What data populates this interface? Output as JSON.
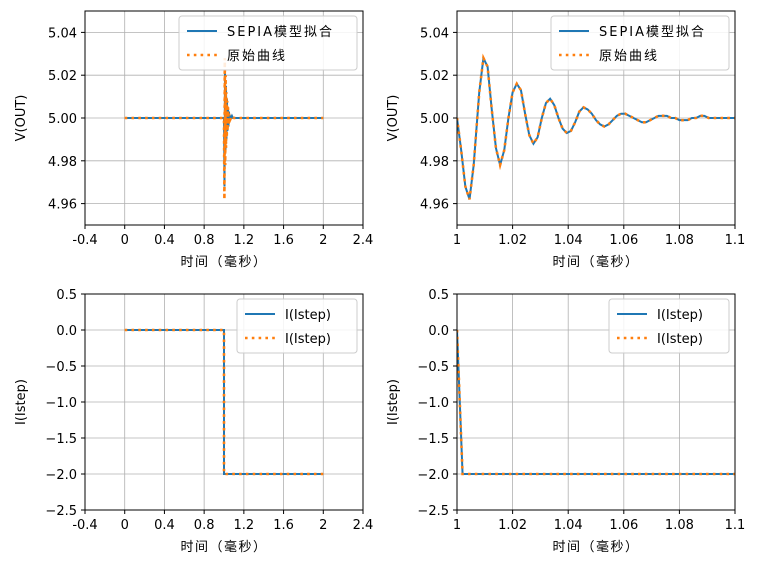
{
  "chart_data": [
    {
      "type": "line",
      "xlabel": "时间（毫秒）",
      "ylabel": "V(OUT)",
      "xlim": [
        -0.4,
        2.4
      ],
      "ylim": [
        4.95,
        5.05
      ],
      "xticks": [
        "-0.4",
        "0",
        "0.4",
        "0.8",
        "1.2",
        "1.6",
        "2",
        "2.4"
      ],
      "yticks": [
        "4.96",
        "4.98",
        "5.00",
        "5.02",
        "5.04"
      ],
      "grid": true,
      "legend_position": "top-right",
      "series": [
        {
          "name": "SEPIA模型拟合",
          "color": "#1f77b4",
          "style": "solid",
          "x": [
            0,
            0.99,
            1.0,
            1.005,
            1.01,
            1.015,
            1.02,
            1.025,
            1.03,
            1.035,
            1.04,
            1.045,
            1.05,
            1.055,
            1.06,
            1.07,
            1.08,
            1.09,
            1.1,
            2.0
          ],
          "y": [
            5.0,
            5.0,
            5.0,
            4.968,
            5.022,
            4.984,
            5.015,
            4.99,
            5.009,
            4.994,
            5.005,
            4.996,
            5.003,
            4.998,
            5.001,
            5.0,
            5.001,
            5.0,
            5.0,
            5.0
          ]
        },
        {
          "name": "原始曲线",
          "color": "#ff7f0e",
          "style": "dotted",
          "x": [
            0,
            0.99,
            1.0,
            1.004,
            1.008,
            1.012,
            1.016,
            1.02,
            1.024,
            1.028,
            1.032,
            1.036,
            1.04,
            1.044,
            1.05,
            1.06,
            1.08,
            1.1,
            2.0
          ],
          "y": [
            5.0,
            5.0,
            5.0,
            4.962,
            5.028,
            4.978,
            5.02,
            4.986,
            5.012,
            4.991,
            5.008,
            4.994,
            5.005,
            4.997,
            5.002,
            4.999,
            5.001,
            5.0,
            5.0
          ]
        }
      ]
    },
    {
      "type": "line",
      "xlabel": "时间（毫秒）",
      "ylabel": "V(OUT)",
      "xlim": [
        1.0,
        1.1
      ],
      "ylim": [
        4.95,
        5.05
      ],
      "xticks": [
        "1",
        "1.02",
        "1.04",
        "1.06",
        "1.08",
        "1.1"
      ],
      "yticks": [
        "4.96",
        "4.98",
        "5.00",
        "5.02",
        "5.04"
      ],
      "grid": true,
      "legend_position": "top-right",
      "series": [
        {
          "name": "SEPIA模型拟合",
          "color": "#1f77b4",
          "style": "solid",
          "x": [
            1.0,
            1.0015,
            1.003,
            1.0045,
            1.006,
            1.008,
            1.0095,
            1.011,
            1.0125,
            1.014,
            1.0155,
            1.017,
            1.0185,
            1.02,
            1.0215,
            1.023,
            1.0245,
            1.026,
            1.0275,
            1.029,
            1.0305,
            1.032,
            1.0335,
            1.035,
            1.0365,
            1.038,
            1.0395,
            1.041,
            1.0425,
            1.044,
            1.0455,
            1.047,
            1.0485,
            1.05,
            1.0515,
            1.053,
            1.0545,
            1.056,
            1.0575,
            1.059,
            1.0605,
            1.062,
            1.0635,
            1.065,
            1.0665,
            1.068,
            1.0695,
            1.071,
            1.0725,
            1.074,
            1.0755,
            1.077,
            1.0785,
            1.08,
            1.0815,
            1.083,
            1.0845,
            1.086,
            1.0875,
            1.089,
            1.0905,
            1.092,
            1.0935,
            1.095,
            1.0965,
            1.098,
            1.0995,
            1.1
          ],
          "y": [
            5.0,
            4.985,
            4.968,
            4.962,
            4.978,
            5.012,
            5.028,
            5.024,
            5.004,
            4.986,
            4.978,
            4.985,
            5.0,
            5.012,
            5.016,
            5.013,
            5.002,
            4.992,
            4.988,
            4.991,
            5.0,
            5.007,
            5.009,
            5.006,
            5.0,
            4.995,
            4.993,
            4.994,
            4.998,
            5.003,
            5.005,
            5.004,
            5.002,
            4.999,
            4.997,
            4.996,
            4.997,
            4.999,
            5.001,
            5.002,
            5.002,
            5.001,
            5.0,
            4.999,
            4.998,
            4.998,
            4.999,
            5.0,
            5.001,
            5.001,
            5.001,
            5.0,
            5.0,
            4.999,
            4.999,
            4.999,
            5.0,
            5.0,
            5.001,
            5.001,
            5.0,
            5.0,
            5.0,
            5.0,
            5.0,
            5.0,
            5.0,
            5.0
          ]
        },
        {
          "name": "原始曲线",
          "color": "#ff7f0e",
          "style": "dotted",
          "x": [
            1.0,
            1.0015,
            1.003,
            1.0045,
            1.006,
            1.008,
            1.0095,
            1.011,
            1.0125,
            1.014,
            1.0155,
            1.017,
            1.0185,
            1.02,
            1.0215,
            1.023,
            1.0245,
            1.026,
            1.0275,
            1.029,
            1.0305,
            1.032,
            1.0335,
            1.035,
            1.0365,
            1.038,
            1.0395,
            1.041,
            1.0425,
            1.044,
            1.0455,
            1.047,
            1.0485,
            1.05,
            1.0515,
            1.053,
            1.0545,
            1.056,
            1.0575,
            1.059,
            1.0605,
            1.062,
            1.0635,
            1.065,
            1.0665,
            1.068,
            1.0695,
            1.071,
            1.0725,
            1.074,
            1.0755,
            1.077,
            1.0785,
            1.08,
            1.0815,
            1.083,
            1.0845,
            1.086,
            1.0875,
            1.089,
            1.0905,
            1.092,
            1.0935,
            1.095,
            1.0965,
            1.098,
            1.0995,
            1.1
          ],
          "y": [
            5.0,
            4.985,
            4.968,
            4.962,
            4.978,
            5.012,
            5.028,
            5.024,
            5.004,
            4.986,
            4.978,
            4.985,
            5.0,
            5.012,
            5.016,
            5.013,
            5.002,
            4.992,
            4.988,
            4.991,
            5.0,
            5.007,
            5.009,
            5.006,
            5.0,
            4.995,
            4.993,
            4.994,
            4.998,
            5.003,
            5.005,
            5.004,
            5.002,
            4.999,
            4.997,
            4.996,
            4.997,
            4.999,
            5.001,
            5.002,
            5.002,
            5.001,
            5.0,
            4.999,
            4.998,
            4.998,
            4.999,
            5.0,
            5.001,
            5.001,
            5.001,
            5.0,
            5.0,
            4.999,
            4.999,
            4.999,
            5.0,
            5.0,
            5.001,
            5.001,
            5.0,
            5.0,
            5.0,
            5.0,
            5.0,
            5.0,
            5.0,
            5.0
          ]
        }
      ]
    },
    {
      "type": "line",
      "xlabel": "时间（毫秒）",
      "ylabel": "I(Istep)",
      "xlim": [
        -0.4,
        2.4
      ],
      "ylim": [
        -2.5,
        0.5
      ],
      "xticks": [
        "-0.4",
        "0",
        "0.4",
        "0.8",
        "1.2",
        "1.6",
        "2",
        "2.4"
      ],
      "yticks": [
        "−2.5",
        "−2.0",
        "−1.5",
        "−1.0",
        "−0.5",
        "0.0",
        "0.5"
      ],
      "grid": true,
      "legend_position": "top-right",
      "series": [
        {
          "name": "I(Istep)",
          "color": "#1f77b4",
          "style": "solid",
          "x": [
            0,
            1.0,
            1.0,
            2.0
          ],
          "y": [
            0.0,
            0.0,
            -2.0,
            -2.0
          ]
        },
        {
          "name": "I(Istep)",
          "color": "#ff7f0e",
          "style": "dotted",
          "x": [
            0,
            1.0,
            1.0,
            2.0
          ],
          "y": [
            0.0,
            0.0,
            -2.0,
            -2.0
          ]
        }
      ]
    },
    {
      "type": "line",
      "xlabel": "时间（毫秒）",
      "ylabel": "I(Istep)",
      "xlim": [
        1.0,
        1.1
      ],
      "ylim": [
        -2.5,
        0.5
      ],
      "xticks": [
        "1",
        "1.02",
        "1.04",
        "1.06",
        "1.08",
        "1.1"
      ],
      "yticks": [
        "−2.5",
        "−2.0",
        "−1.5",
        "−1.0",
        "−0.5",
        "0.0",
        "0.5"
      ],
      "grid": true,
      "legend_position": "top-right",
      "series": [
        {
          "name": "I(Istep)",
          "color": "#1f77b4",
          "style": "solid",
          "x": [
            1.0,
            1.002,
            1.1
          ],
          "y": [
            0.0,
            -2.0,
            -2.0
          ]
        },
        {
          "name": "I(Istep)",
          "color": "#ff7f0e",
          "style": "dotted",
          "x": [
            1.0,
            1.002,
            1.1
          ],
          "y": [
            0.0,
            -2.0,
            -2.0
          ]
        }
      ]
    }
  ]
}
